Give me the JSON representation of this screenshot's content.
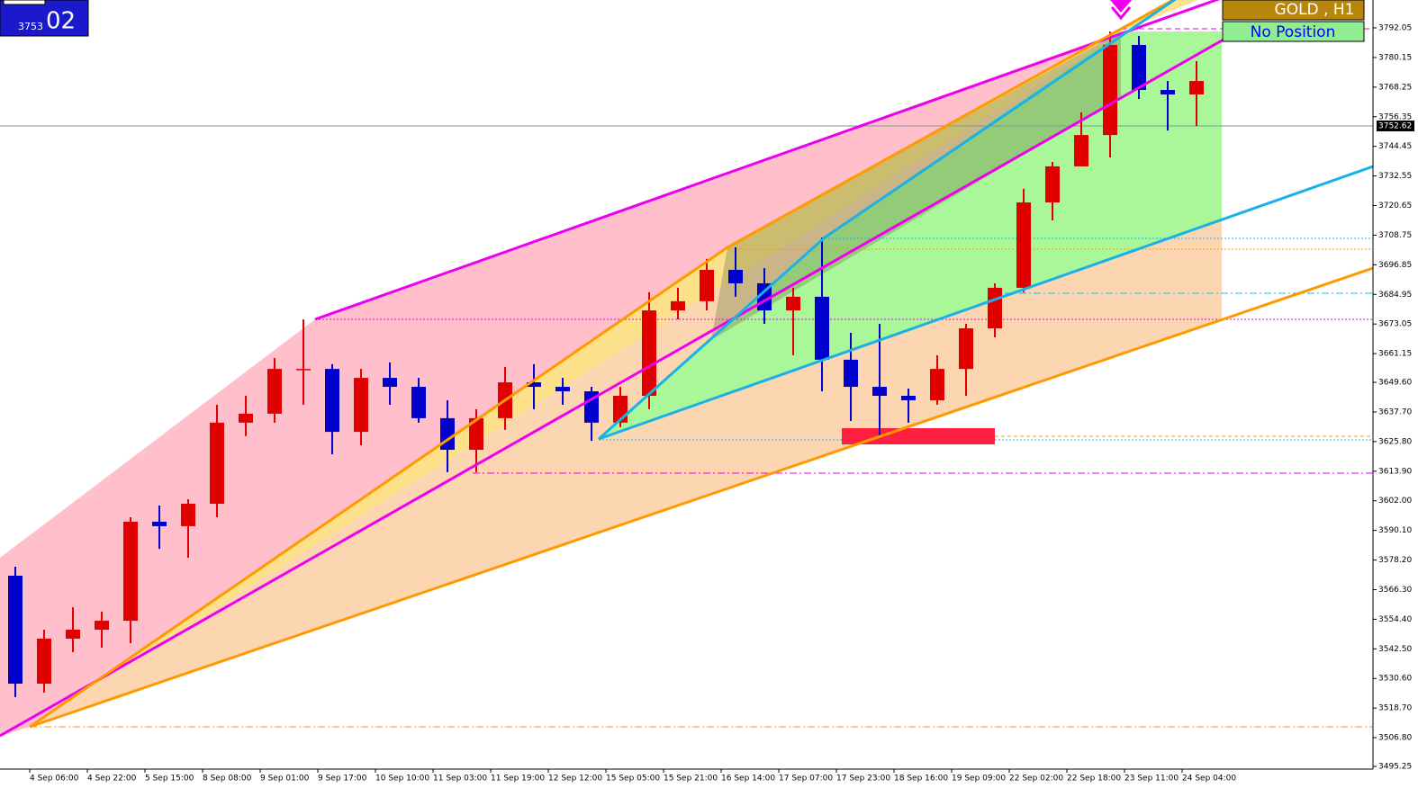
{
  "chart_data": {
    "type": "candlestick",
    "symbol_label": "GOLD , H1",
    "position_label": "No Position",
    "bid_big": "02",
    "bid_small": "3753",
    "current_price": 3752.62,
    "up_color": "#e00000",
    "down_color": "#0000cc",
    "categories": [
      null,
      "4 Sep 06:00",
      null,
      "4 Sep 22:00",
      null,
      "5 Sep 15:00",
      null,
      "8 Sep 08:00",
      null,
      "9 Sep 01:00",
      null,
      "9 Sep 17:00",
      null,
      "10 Sep 10:00",
      null,
      "11 Sep 03:00",
      null,
      "11 Sep 19:00",
      null,
      "12 Sep 12:00",
      null,
      "15 Sep 05:00",
      null,
      "15 Sep 21:00",
      null,
      "16 Sep 14:00",
      null,
      "17 Sep 07:00",
      null,
      "17 Sep 23:00",
      null,
      "18 Sep 16:00",
      null,
      "19 Sep 09:00",
      null,
      "22 Sep 02:00",
      null,
      "22 Sep 18:00",
      null,
      "23 Sep 11:00",
      null,
      "24 Sep 04:00"
    ],
    "open": [
      3571.9,
      3528.5,
      3546.6,
      3550.2,
      3553.8,
      3593.6,
      3591.8,
      3600.8,
      3633.4,
      3637.0,
      3655.0,
      3655.0,
      3629.7,
      3651.4,
      3647.8,
      3635.2,
      3622.5,
      3635.2,
      3649.6,
      3647.8,
      3646.0,
      3633.4,
      3644.2,
      3678.5,
      3682.2,
      3694.8,
      3689.4,
      3678.5,
      3684.0,
      3658.7,
      3647.8,
      3644.2,
      3642.4,
      3655.0,
      3671.3,
      3687.6,
      3721.9,
      3736.4,
      3749.0,
      3785.2,
      3767.1,
      3765.3
    ],
    "high": [
      3575.5,
      3550.2,
      3559.2,
      3557.4,
      3595.4,
      3600.1,
      3602.6,
      3640.6,
      3644.2,
      3659.4,
      3674.9,
      3656.9,
      3655.0,
      3657.6,
      3651.4,
      3642.4,
      3638.8,
      3655.8,
      3656.9,
      3651.4,
      3647.8,
      3647.8,
      3685.8,
      3687.6,
      3699.2,
      3703.9,
      3695.5,
      3687.6,
      3707.8,
      3669.5,
      3673.1,
      3647.1,
      3660.5,
      3673.1,
      3689.4,
      3727.4,
      3738.2,
      3758.1,
      3790.6,
      3788.8,
      3770.7,
      3778.7
    ],
    "low": [
      3523.1,
      3524.9,
      3541.2,
      3543.0,
      3544.8,
      3582.7,
      3579.1,
      3595.4,
      3628.0,
      3633.4,
      3640.6,
      3620.7,
      3624.3,
      3640.6,
      3633.4,
      3613.5,
      3613.5,
      3630.5,
      3638.8,
      3640.6,
      3626.1,
      3631.6,
      3638.8,
      3674.9,
      3678.5,
      3684.0,
      3673.1,
      3660.5,
      3646.0,
      3634.1,
      3628.0,
      3633.4,
      3640.6,
      3644.2,
      3667.7,
      3685.8,
      3714.7,
      3736.4,
      3740.0,
      3763.5,
      3750.8,
      3752.6
    ],
    "close": [
      3528.5,
      3546.6,
      3550.2,
      3553.8,
      3593.6,
      3591.8,
      3600.8,
      3633.4,
      3637.0,
      3655.0,
      3655.0,
      3629.7,
      3651.4,
      3647.8,
      3635.2,
      3622.5,
      3635.2,
      3649.6,
      3647.8,
      3646.0,
      3633.4,
      3644.2,
      3678.5,
      3682.2,
      3694.8,
      3689.4,
      3678.5,
      3684.0,
      3658.7,
      3647.8,
      3644.2,
      3642.4,
      3655.0,
      3671.3,
      3687.6,
      3721.9,
      3736.4,
      3749.0,
      3785.2,
      3767.1,
      3765.3,
      3770.7
    ],
    "ylim": [
      3494.17,
      3803.26
    ],
    "yticks": [
      3792.05,
      3780.15,
      3768.25,
      3756.35,
      3744.45,
      3732.55,
      3720.65,
      3708.75,
      3696.85,
      3684.95,
      3673.05,
      3661.15,
      {
        "value": 3649.6,
        "label": "3649.60"
      },
      {
        "value": 3637.7,
        "label": "3637.70"
      },
      {
        "value": 3625.8,
        "label": "3625.80"
      },
      {
        "value": 3613.9,
        "label": "3613.90"
      },
      {
        "value": 3602,
        "label": "3602.00"
      },
      {
        "value": 3590.1,
        "label": "3590.10"
      },
      {
        "value": 3578.2,
        "label": "3578.20"
      },
      {
        "value": 3566.3,
        "label": "3566.30"
      },
      {
        "value": 3554.4,
        "label": "3554.40"
      },
      {
        "value": 3542.5,
        "label": "3542.50"
      },
      {
        "value": 3530.6,
        "label": "3530.60"
      },
      {
        "value": 3518.7,
        "label": "3518.70"
      },
      {
        "value": 3506.8,
        "label": "3506.80"
      },
      3495.25
    ]
  }
}
